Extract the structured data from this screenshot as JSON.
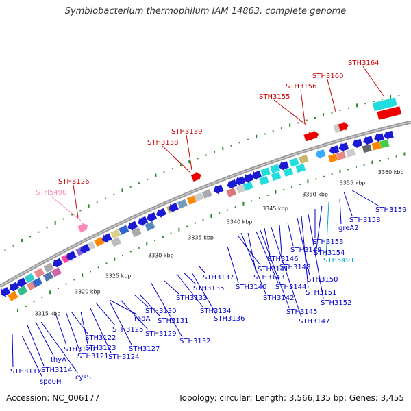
{
  "title": "Symbiobacterium thermophilum IAM 14863, complete genome",
  "accession": "Accession: NC_006177",
  "stats": "Topology: circular; Length: 3,566,135 bp; Genes: 3,455",
  "colors": {
    "backbone": "#999999",
    "label_dark_blue": "#0000cc",
    "label_red": "#cc0000",
    "label_pink": "#ff88bb",
    "label_cyan": "#00aacc",
    "dot_green": "#2a8a2a"
  },
  "kbp_ticks": [
    "3315 kbp",
    "3320 kbp",
    "3325 kbp",
    "3330 kbp",
    "3335 kbp",
    "3340 kbp",
    "3345 kbp",
    "3350 kbp",
    "3355 kbp",
    "3360 kbp"
  ],
  "top_labels": [
    {
      "text": "STH5490",
      "color": "#ff88bb"
    },
    {
      "text": "STH3126",
      "color": "#cc0000"
    },
    {
      "text": "STH3138",
      "color": "#cc0000"
    },
    {
      "text": "STH3139",
      "color": "#cc0000"
    },
    {
      "text": "STH3155",
      "color": "#cc0000"
    },
    {
      "text": "STH3156",
      "color": "#cc0000"
    },
    {
      "text": "STH3160",
      "color": "#cc0000"
    },
    {
      "text": "STH3164",
      "color": "#cc0000"
    }
  ],
  "bottom_labels": [
    {
      "text": "STH3112"
    },
    {
      "text": "spo0H"
    },
    {
      "text": "STH3114"
    },
    {
      "text": "thyA"
    },
    {
      "text": "cysS"
    },
    {
      "text": "STH3120"
    },
    {
      "text": "STH3121"
    },
    {
      "text": "STH3122"
    },
    {
      "text": "STH3123"
    },
    {
      "text": "STH3124"
    },
    {
      "text": "STH3125"
    },
    {
      "text": "STH3127"
    },
    {
      "text": "radA"
    },
    {
      "text": "STH3129"
    },
    {
      "text": "STH3130"
    },
    {
      "text": "STH3131"
    },
    {
      "text": "STH3132"
    },
    {
      "text": "STH3133"
    },
    {
      "text": "STH3134"
    },
    {
      "text": "STH3135"
    },
    {
      "text": "STH3136"
    },
    {
      "text": "STH3137"
    },
    {
      "text": "STH3140"
    },
    {
      "text": "STH3141"
    },
    {
      "text": "STH3142"
    },
    {
      "text": "STH3143"
    },
    {
      "text": "STH3144"
    },
    {
      "text": "STH3145"
    },
    {
      "text": "STH3146"
    },
    {
      "text": "STH3147"
    },
    {
      "text": "STH3148"
    },
    {
      "text": "STH3149"
    },
    {
      "text": "STH3150"
    },
    {
      "text": "STH3151"
    },
    {
      "text": "STH3152"
    },
    {
      "text": "STH3153"
    },
    {
      "text": "STH3154"
    },
    {
      "text": "STH5491",
      "color": "#00aacc"
    },
    {
      "text": "greA2"
    },
    {
      "text": "STH3158"
    },
    {
      "text": "STH3159"
    }
  ]
}
